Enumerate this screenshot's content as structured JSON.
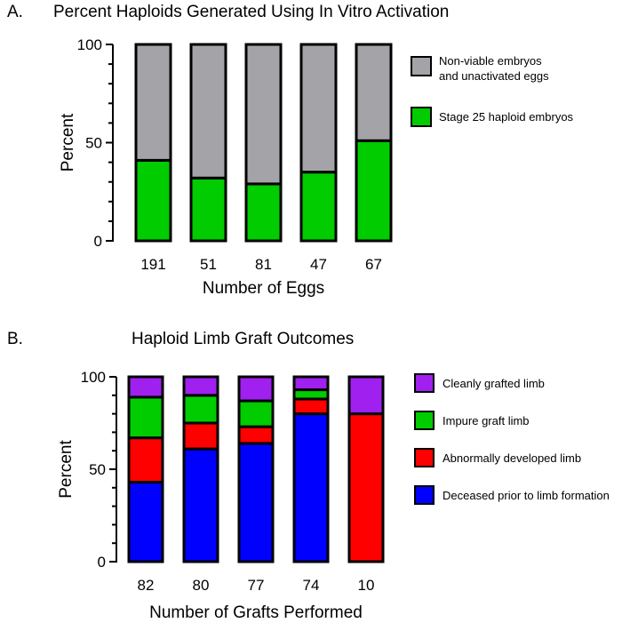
{
  "chart_data": [
    {
      "panel": "A.",
      "type": "bar",
      "stacked": true,
      "title": "Percent Haploids Generated Using In Vitro Activation",
      "xlabel": "Number of Eggs",
      "ylabel": "Percent",
      "ylim": [
        0,
        100
      ],
      "yticks": [
        "0",
        "50",
        "100"
      ],
      "categories": [
        "191",
        "51",
        "81",
        "47",
        "67"
      ],
      "series": [
        {
          "name": "Stage 25 haploid embryos",
          "color": "#00cc00",
          "values": [
            41,
            32,
            29,
            35,
            51
          ]
        },
        {
          "name": "Non-viable embryos and unactivated eggs",
          "label_lines": [
            "Non-viable embryos",
            "and unactivated eggs"
          ],
          "color": "#a3a3a8",
          "values": [
            59,
            68,
            71,
            65,
            49
          ]
        }
      ],
      "legend": "right"
    },
    {
      "panel": "B.",
      "type": "bar",
      "stacked": true,
      "title": "Haploid Limb Graft Outcomes",
      "xlabel": "Number of Grafts Performed",
      "ylabel": "Percent",
      "ylim": [
        0,
        100
      ],
      "yticks": [
        "0",
        "50",
        "100"
      ],
      "categories": [
        "82",
        "80",
        "77",
        "74",
        "10"
      ],
      "series": [
        {
          "name": "Deceased prior to limb formation",
          "color": "#0000ff",
          "values": [
            43,
            61,
            64,
            80,
            0
          ]
        },
        {
          "name": "Abnormally developed limb",
          "color": "#ff0000",
          "values": [
            24,
            14,
            9,
            8,
            80
          ]
        },
        {
          "name": "Impure graft limb",
          "color": "#00cc00",
          "values": [
            22,
            15,
            14,
            5,
            0
          ]
        },
        {
          "name": "Cleanly grafted limb",
          "color": "#a020f0",
          "values": [
            11,
            10,
            13,
            7,
            20
          ]
        }
      ],
      "legend": "right"
    }
  ]
}
